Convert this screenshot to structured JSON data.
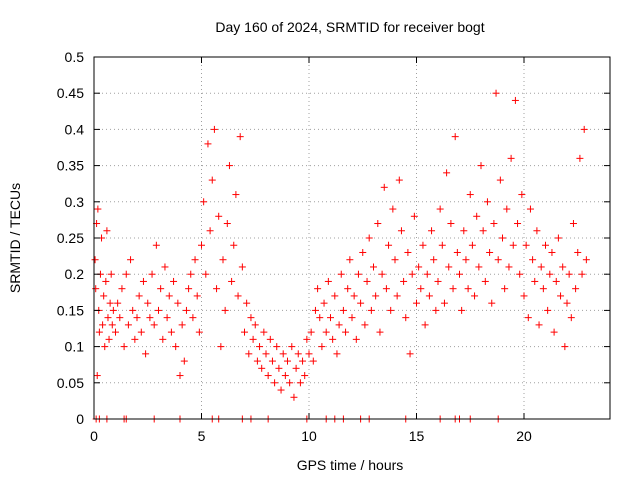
{
  "chart_data": {
    "type": "scatter",
    "title": "Day 160 of 2024, SRMTID for receiver bogt",
    "xlabel": "GPS time / hours",
    "ylabel": "SRMTID / TECUs",
    "xlim": [
      0,
      24
    ],
    "ylim": [
      0,
      0.5
    ],
    "grid": true,
    "marker": "+",
    "color": "#ff0000",
    "x_ticks": [
      0,
      5,
      10,
      15,
      20
    ],
    "x_tick_labels": [
      "0",
      "5",
      "10",
      "15",
      "20"
    ],
    "y_ticks": [
      0,
      0.05,
      0.1,
      0.15,
      0.2,
      0.25,
      0.3,
      0.35,
      0.4,
      0.45,
      0.5
    ],
    "y_tick_labels": [
      "0",
      "0.05",
      "0.1",
      "0.15",
      "0.2",
      "0.25",
      "0.3",
      "0.35",
      "0.4",
      "0.45",
      "0.5"
    ],
    "series": [
      {
        "name": "SRMTID",
        "points": [
          [
            0.05,
            0.22
          ],
          [
            0.08,
            0.18
          ],
          [
            0.12,
            0.27
          ],
          [
            0.15,
            0.06
          ],
          [
            0.18,
            0.29
          ],
          [
            0.22,
            0.15
          ],
          [
            0.25,
            0.12
          ],
          [
            0.3,
            0.2
          ],
          [
            0.35,
            0.25
          ],
          [
            0.4,
            0.13
          ],
          [
            0.45,
            0.17
          ],
          [
            0.5,
            0.1
          ],
          [
            0.55,
            0.19
          ],
          [
            0.6,
            0.26
          ],
          [
            0.65,
            0.14
          ],
          [
            0.7,
            0.11
          ],
          [
            0.75,
            0.16
          ],
          [
            0.8,
            0.2
          ],
          [
            0.85,
            0.13
          ],
          [
            0.9,
            0.15
          ],
          [
            1.0,
            0.12
          ],
          [
            1.1,
            0.16
          ],
          [
            1.2,
            0.14
          ],
          [
            1.3,
            0.18
          ],
          [
            1.4,
            0.1
          ],
          [
            1.5,
            0.2
          ],
          [
            1.6,
            0.13
          ],
          [
            1.7,
            0.22
          ],
          [
            1.8,
            0.15
          ],
          [
            1.9,
            0.11
          ],
          [
            2.0,
            0.14
          ],
          [
            2.1,
            0.17
          ],
          [
            2.2,
            0.12
          ],
          [
            2.3,
            0.19
          ],
          [
            2.4,
            0.09
          ],
          [
            2.5,
            0.16
          ],
          [
            2.6,
            0.14
          ],
          [
            2.7,
            0.2
          ],
          [
            2.8,
            0.13
          ],
          [
            2.9,
            0.24
          ],
          [
            3.0,
            0.15
          ],
          [
            3.1,
            0.18
          ],
          [
            3.2,
            0.11
          ],
          [
            3.3,
            0.21
          ],
          [
            3.4,
            0.14
          ],
          [
            3.5,
            0.17
          ],
          [
            3.6,
            0.12
          ],
          [
            3.7,
            0.19
          ],
          [
            3.8,
            0.1
          ],
          [
            3.9,
            0.16
          ],
          [
            4.0,
            0.06
          ],
          [
            4.1,
            0.13
          ],
          [
            4.2,
            0.08
          ],
          [
            4.3,
            0.15
          ],
          [
            4.4,
            0.18
          ],
          [
            4.5,
            0.2
          ],
          [
            4.6,
            0.14
          ],
          [
            4.7,
            0.22
          ],
          [
            4.8,
            0.17
          ],
          [
            4.9,
            0.12
          ],
          [
            5.0,
            0.24
          ],
          [
            5.1,
            0.3
          ],
          [
            5.2,
            0.2
          ],
          [
            5.3,
            0.38
          ],
          [
            5.4,
            0.26
          ],
          [
            5.5,
            0.33
          ],
          [
            5.6,
            0.4
          ],
          [
            5.7,
            0.18
          ],
          [
            5.8,
            0.28
          ],
          [
            5.9,
            0.1
          ],
          [
            6.0,
            0.22
          ],
          [
            6.1,
            0.15
          ],
          [
            6.2,
            0.27
          ],
          [
            6.3,
            0.35
          ],
          [
            6.4,
            0.19
          ],
          [
            6.5,
            0.24
          ],
          [
            6.6,
            0.31
          ],
          [
            6.7,
            0.17
          ],
          [
            6.8,
            0.39
          ],
          [
            6.9,
            0.21
          ],
          [
            7.0,
            0.12
          ],
          [
            7.1,
            0.16
          ],
          [
            7.2,
            0.09
          ],
          [
            7.3,
            0.14
          ],
          [
            7.4,
            0.11
          ],
          [
            7.5,
            0.13
          ],
          [
            7.6,
            0.08
          ],
          [
            7.7,
            0.1
          ],
          [
            7.8,
            0.07
          ],
          [
            7.9,
            0.12
          ],
          [
            8.0,
            0.09
          ],
          [
            8.1,
            0.06
          ],
          [
            8.2,
            0.11
          ],
          [
            8.3,
            0.08
          ],
          [
            8.4,
            0.05
          ],
          [
            8.5,
            0.1
          ],
          [
            8.6,
            0.07
          ],
          [
            8.7,
            0.04
          ],
          [
            8.8,
            0.09
          ],
          [
            8.9,
            0.06
          ],
          [
            9.0,
            0.08
          ],
          [
            9.1,
            0.05
          ],
          [
            9.2,
            0.1
          ],
          [
            9.3,
            0.03
          ],
          [
            9.4,
            0.07
          ],
          [
            9.5,
            0.09
          ],
          [
            9.6,
            0.05
          ],
          [
            9.7,
            0.08
          ],
          [
            9.8,
            0.06
          ],
          [
            9.9,
            0.11
          ],
          [
            10.0,
            0.09
          ],
          [
            10.1,
            0.12
          ],
          [
            10.2,
            0.08
          ],
          [
            10.3,
            0.15
          ],
          [
            10.4,
            0.18
          ],
          [
            10.5,
            0.14
          ],
          [
            10.6,
            0.1
          ],
          [
            10.7,
            0.16
          ],
          [
            10.8,
            0.12
          ],
          [
            10.9,
            0.19
          ],
          [
            11.0,
            0.14
          ],
          [
            11.1,
            0.11
          ],
          [
            11.2,
            0.17
          ],
          [
            11.3,
            0.09
          ],
          [
            11.4,
            0.13
          ],
          [
            11.5,
            0.2
          ],
          [
            11.6,
            0.15
          ],
          [
            11.7,
            0.12
          ],
          [
            11.8,
            0.18
          ],
          [
            11.9,
            0.22
          ],
          [
            12.0,
            0.14
          ],
          [
            12.1,
            0.17
          ],
          [
            12.2,
            0.11
          ],
          [
            12.3,
            0.2
          ],
          [
            12.4,
            0.16
          ],
          [
            12.5,
            0.23
          ],
          [
            12.6,
            0.13
          ],
          [
            12.7,
            0.19
          ],
          [
            12.8,
            0.25
          ],
          [
            12.9,
            0.15
          ],
          [
            13.0,
            0.21
          ],
          [
            13.1,
            0.17
          ],
          [
            13.2,
            0.27
          ],
          [
            13.3,
            0.12
          ],
          [
            13.4,
            0.2
          ],
          [
            13.5,
            0.32
          ],
          [
            13.6,
            0.18
          ],
          [
            13.7,
            0.24
          ],
          [
            13.8,
            0.15
          ],
          [
            13.9,
            0.29
          ],
          [
            14.0,
            0.22
          ],
          [
            14.1,
            0.17
          ],
          [
            14.2,
            0.33
          ],
          [
            14.3,
            0.26
          ],
          [
            14.4,
            0.19
          ],
          [
            14.5,
            0.14
          ],
          [
            14.6,
            0.23
          ],
          [
            14.7,
            0.09
          ],
          [
            14.8,
            0.2
          ],
          [
            14.9,
            0.28
          ],
          [
            15.0,
            0.16
          ],
          [
            15.1,
            0.21
          ],
          [
            15.2,
            0.18
          ],
          [
            15.3,
            0.24
          ],
          [
            15.4,
            0.13
          ],
          [
            15.5,
            0.2
          ],
          [
            15.6,
            0.17
          ],
          [
            15.7,
            0.26
          ],
          [
            15.8,
            0.22
          ],
          [
            15.9,
            0.15
          ],
          [
            16.0,
            0.19
          ],
          [
            16.1,
            0.29
          ],
          [
            16.2,
            0.24
          ],
          [
            16.3,
            0.16
          ],
          [
            16.4,
            0.34
          ],
          [
            16.5,
            0.21
          ],
          [
            16.6,
            0.27
          ],
          [
            16.7,
            0.18
          ],
          [
            16.8,
            0.39
          ],
          [
            16.9,
            0.23
          ],
          [
            17.0,
            0.2
          ],
          [
            17.1,
            0.15
          ],
          [
            17.2,
            0.26
          ],
          [
            17.3,
            0.22
          ],
          [
            17.4,
            0.18
          ],
          [
            17.5,
            0.31
          ],
          [
            17.6,
            0.24
          ],
          [
            17.7,
            0.17
          ],
          [
            17.8,
            0.28
          ],
          [
            17.9,
            0.21
          ],
          [
            18.0,
            0.35
          ],
          [
            18.1,
            0.26
          ],
          [
            18.2,
            0.19
          ],
          [
            18.3,
            0.3
          ],
          [
            18.4,
            0.23
          ],
          [
            18.5,
            0.16
          ],
          [
            18.6,
            0.27
          ],
          [
            18.7,
            0.45
          ],
          [
            18.8,
            0.22
          ],
          [
            18.9,
            0.33
          ],
          [
            19.0,
            0.25
          ],
          [
            19.1,
            0.18
          ],
          [
            19.2,
            0.29
          ],
          [
            19.3,
            0.21
          ],
          [
            19.4,
            0.36
          ],
          [
            19.5,
            0.24
          ],
          [
            19.6,
            0.44
          ],
          [
            19.7,
            0.27
          ],
          [
            19.8,
            0.2
          ],
          [
            19.9,
            0.31
          ],
          [
            20.0,
            0.17
          ],
          [
            20.1,
            0.24
          ],
          [
            20.2,
            0.14
          ],
          [
            20.3,
            0.29
          ],
          [
            20.4,
            0.22
          ],
          [
            20.5,
            0.19
          ],
          [
            20.6,
            0.26
          ],
          [
            20.7,
            0.13
          ],
          [
            20.8,
            0.21
          ],
          [
            20.9,
            0.18
          ],
          [
            21.0,
            0.24
          ],
          [
            21.1,
            0.15
          ],
          [
            21.2,
            0.2
          ],
          [
            21.3,
            0.23
          ],
          [
            21.4,
            0.12
          ],
          [
            21.5,
            0.19
          ],
          [
            21.6,
            0.25
          ],
          [
            21.7,
            0.17
          ],
          [
            21.8,
            0.21
          ],
          [
            21.9,
            0.1
          ],
          [
            22.0,
            0.16
          ],
          [
            22.1,
            0.2
          ],
          [
            22.2,
            0.14
          ],
          [
            22.3,
            0.27
          ],
          [
            22.4,
            0.18
          ],
          [
            22.5,
            0.23
          ],
          [
            22.6,
            0.36
          ],
          [
            22.7,
            0.2
          ],
          [
            22.8,
            0.4
          ],
          [
            22.9,
            0.22
          ],
          [
            0.1,
            0.0
          ],
          [
            0.25,
            0.0
          ],
          [
            0.6,
            0.0
          ],
          [
            1.4,
            0.0
          ],
          [
            1.5,
            0.0
          ],
          [
            2.8,
            0.0
          ],
          [
            4.0,
            0.0
          ],
          [
            5.5,
            0.0
          ],
          [
            5.8,
            0.0
          ],
          [
            6.9,
            0.0
          ],
          [
            7.3,
            0.0
          ],
          [
            8.1,
            0.0
          ],
          [
            9.9,
            0.0
          ],
          [
            10.8,
            0.0
          ],
          [
            11.2,
            0.0
          ],
          [
            11.6,
            0.0
          ],
          [
            12.4,
            0.0
          ],
          [
            12.8,
            0.0
          ],
          [
            14.5,
            0.0
          ],
          [
            16.1,
            0.0
          ],
          [
            16.8,
            0.0
          ],
          [
            17.0,
            0.0
          ],
          [
            17.5,
            0.0
          ],
          [
            18.8,
            0.0
          ]
        ]
      }
    ]
  }
}
